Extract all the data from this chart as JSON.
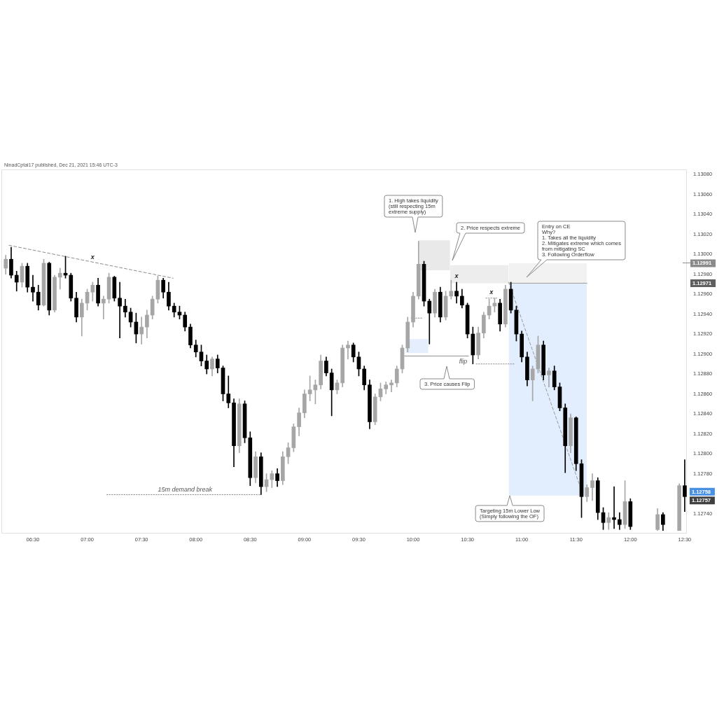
{
  "chart_data": {
    "type": "candlestick",
    "annotations": [
      "NinadCptal17 published, Dec 21, 2021 15:46 UTC-3",
      "1. High takes liquidity\n(still respecting 15m\nextreme supply)",
      "2. Price respects extreme",
      "3. Price causes Flip",
      "Entry on CE\nWhy?\n1. Takes all the liquidity\n2. Mitigates extreme which comes\nfrom mitigating SC\n3. Following Orderflow",
      {
        "text": "Targeting 15m Lower Low\n(Simply following the OF)",
        "x": 10.89,
        "y": 1.12758
      },
      {
        "text": "15m demand break",
        "x": 7.9,
        "y": 1.12759
      },
      {
        "text": "flip",
        "x": 10.5,
        "y": 1.12898
      },
      {
        "text": "x",
        "x": 7.05,
        "y": 1.12992
      },
      {
        "text": "x",
        "x": 10.4,
        "y": 1.12972
      },
      {
        "text": "x",
        "x": 10.72,
        "y": 1.12956
      },
      {
        "text": "1.12758",
        "x": 12.5,
        "y": 1.12758
      },
      {
        "text": "1.12757",
        "x": 12.5,
        "y": 1.12757
      },
      "1.12971"
    ],
    "x": [
      6.25,
      6.3,
      6.35,
      6.4,
      6.45,
      6.5,
      6.55,
      6.6,
      6.65,
      6.7,
      6.75,
      6.8,
      6.85,
      6.9,
      6.95,
      7,
      7.05,
      7.1,
      7.15,
      7.2,
      7.25,
      7.3,
      7.35,
      7.4,
      7.45,
      7.5,
      7.55,
      7.6,
      7.65,
      7.7,
      7.75,
      7.8,
      7.85,
      7.9,
      7.95,
      8,
      8.05,
      8.1,
      8.15,
      8.2,
      8.25,
      8.3,
      8.35,
      8.4,
      8.45,
      8.5,
      8.55,
      8.6,
      8.65,
      8.7,
      8.75,
      8.8,
      8.85,
      8.9,
      8.95,
      9,
      9.05,
      9.1,
      9.15,
      9.2,
      9.25,
      9.3,
      9.35,
      9.4,
      9.45,
      9.5,
      9.55,
      9.6,
      9.65,
      9.7,
      9.75,
      9.8,
      9.85,
      9.9,
      9.95,
      10,
      10.05,
      10.1,
      10.15,
      10.2,
      10.25,
      10.3,
      10.35,
      10.4,
      10.45,
      10.5,
      10.55,
      10.6,
      10.65,
      10.7,
      10.75,
      10.8,
      10.85,
      10.9,
      10.95,
      11,
      11.05,
      11.1,
      11.15,
      11.2,
      11.25,
      11.3,
      11.35,
      11.4,
      11.45,
      11.5,
      11.55,
      11.6,
      11.65,
      11.7,
      11.75,
      11.8,
      11.85,
      11.9,
      11.95,
      12,
      12.25,
      12.3,
      12.45,
      12.5
    ],
    "ohlc": [
      [
        1.12986,
        1.12999,
        1.1298,
        1.12995
      ],
      [
        1.12995,
        1.13007,
        1.12976,
        1.12979
      ],
      [
        1.12979,
        1.12983,
        1.12963,
        1.12972
      ],
      [
        1.12972,
        1.12991,
        1.12967,
        1.12988
      ],
      [
        1.12988,
        1.12991,
        1.12962,
        1.12967
      ],
      [
        1.12967,
        1.12979,
        1.12953,
        1.12962
      ],
      [
        1.12962,
        1.12969,
        1.12944,
        1.12949
      ],
      [
        1.12949,
        1.12995,
        1.12948,
        1.12991
      ],
      [
        1.12991,
        1.12992,
        1.12939,
        1.12944
      ],
      [
        1.12944,
        1.12979,
        1.12942,
        1.12977
      ],
      [
        1.12977,
        1.12986,
        1.12965,
        1.12981
      ],
      [
        1.12981,
        1.12998,
        1.12976,
        1.12979
      ],
      [
        1.12979,
        1.12981,
        1.12953,
        1.12956
      ],
      [
        1.12956,
        1.12962,
        1.12932,
        1.12937
      ],
      [
        1.12937,
        1.12955,
        1.12918,
        1.12951
      ],
      [
        1.12951,
        1.12965,
        1.12944,
        1.12962
      ],
      [
        1.12962,
        1.12972,
        1.12953,
        1.12969
      ],
      [
        1.12969,
        1.12976,
        1.12948,
        1.12951
      ],
      [
        1.12951,
        1.12958,
        1.12935,
        1.12955
      ],
      [
        1.12955,
        1.12981,
        1.12951,
        1.12977
      ],
      [
        1.12977,
        1.12978,
        1.12953,
        1.12956
      ],
      [
        1.12956,
        1.12972,
        1.12916,
        1.12948
      ],
      [
        1.12948,
        1.12955,
        1.12937,
        1.12942
      ],
      [
        1.12942,
        1.12946,
        1.12927,
        1.12932
      ],
      [
        1.12932,
        1.12941,
        1.12911,
        1.1292
      ],
      [
        1.1292,
        1.12937,
        1.1291,
        1.12927
      ],
      [
        1.12927,
        1.12944,
        1.12916,
        1.12939
      ],
      [
        1.12939,
        1.12958,
        1.12935,
        1.12955
      ],
      [
        1.12955,
        1.12978,
        1.12951,
        1.12974
      ],
      [
        1.12974,
        1.12976,
        1.12956,
        1.12962
      ],
      [
        1.12962,
        1.12972,
        1.12944,
        1.12948
      ],
      [
        1.12948,
        1.12951,
        1.12937,
        1.12942
      ],
      [
        1.12942,
        1.12948,
        1.12935,
        1.12939
      ],
      [
        1.12939,
        1.12942,
        1.12923,
        1.12927
      ],
      [
        1.12927,
        1.1293,
        1.12906,
        1.12909
      ],
      [
        1.12909,
        1.12914,
        1.12897,
        1.12902
      ],
      [
        1.12902,
        1.12909,
        1.12888,
        1.12893
      ],
      [
        1.12893,
        1.12899,
        1.1288,
        1.12885
      ],
      [
        1.12885,
        1.12897,
        1.12878,
        1.12895
      ],
      [
        1.12895,
        1.12899,
        1.12881,
        1.12886
      ],
      [
        1.12886,
        1.12888,
        1.12853,
        1.1286
      ],
      [
        1.1286,
        1.12878,
        1.12846,
        1.12851
      ],
      [
        1.12851,
        1.12855,
        1.12787,
        1.12808
      ],
      [
        1.12808,
        1.12855,
        1.12801,
        1.1285
      ],
      [
        1.1285,
        1.12853,
        1.12811,
        1.12816
      ],
      [
        1.12816,
        1.12822,
        1.12768,
        1.12776
      ],
      [
        1.12776,
        1.12802,
        1.12771,
        1.12797
      ],
      [
        1.12797,
        1.12801,
        1.12759,
        1.12767
      ],
      [
        1.12767,
        1.1278,
        1.12762,
        1.12774
      ],
      [
        1.12774,
        1.12783,
        1.12766,
        1.1278
      ],
      [
        1.1278,
        1.12785,
        1.12767,
        1.12773
      ],
      [
        1.12773,
        1.12802,
        1.12769,
        1.12797
      ],
      [
        1.12797,
        1.12811,
        1.1279,
        1.12806
      ],
      [
        1.12806,
        1.1283,
        1.12802,
        1.12827
      ],
      [
        1.12827,
        1.12846,
        1.12818,
        1.12841
      ],
      [
        1.12841,
        1.12864,
        1.12836,
        1.1286
      ],
      [
        1.1286,
        1.12878,
        1.12853,
        1.12864
      ],
      [
        1.12864,
        1.12874,
        1.1285,
        1.12869
      ],
      [
        1.12869,
        1.12899,
        1.12865,
        1.12893
      ],
      [
        1.12893,
        1.12897,
        1.12878,
        1.12881
      ],
      [
        1.12881,
        1.12885,
        1.12838,
        1.12864
      ],
      [
        1.12864,
        1.12874,
        1.1286,
        1.12871
      ],
      [
        1.12871,
        1.12909,
        1.12867,
        1.12906
      ],
      [
        1.12906,
        1.12913,
        1.12895,
        1.12909
      ],
      [
        1.12909,
        1.12911,
        1.12892,
        1.12897
      ],
      [
        1.12897,
        1.12902,
        1.12878,
        1.12885
      ],
      [
        1.12885,
        1.12888,
        1.12864,
        1.12869
      ],
      [
        1.12869,
        1.12874,
        1.12825,
        1.12832
      ],
      [
        1.12832,
        1.1286,
        1.12829,
        1.12857
      ],
      [
        1.12857,
        1.12871,
        1.12853,
        1.12865
      ],
      [
        1.12865,
        1.12872,
        1.1286,
        1.12869
      ],
      [
        1.12869,
        1.12874,
        1.12862,
        1.12871
      ],
      [
        1.12871,
        1.12888,
        1.12867,
        1.12885
      ],
      [
        1.12885,
        1.12909,
        1.12881,
        1.12906
      ],
      [
        1.12906,
        1.12937,
        1.12902,
        1.12932
      ],
      [
        1.12932,
        1.12962,
        1.12927,
        1.12958
      ],
      [
        1.12958,
        1.13013,
        1.12955,
        1.1299
      ],
      [
        1.1299,
        1.12993,
        1.12948,
        1.12953
      ],
      [
        1.12953,
        1.12955,
        1.1291,
        1.12941
      ],
      [
        1.12941,
        1.12965,
        1.12937,
        1.12962
      ],
      [
        1.12962,
        1.12967,
        1.12932,
        1.12937
      ],
      [
        1.12937,
        1.12963,
        1.12934,
        1.12958
      ],
      [
        1.12958,
        1.12974,
        1.12955,
        1.12963
      ],
      [
        1.12963,
        1.12972,
        1.12951,
        1.12958
      ],
      [
        1.12958,
        1.12965,
        1.12946,
        1.12949
      ],
      [
        1.12949,
        1.12951,
        1.12916,
        1.1292
      ],
      [
        1.1292,
        1.12927,
        1.1289,
        1.12899
      ],
      [
        1.12899,
        1.12927,
        1.12895,
        1.12921
      ],
      [
        1.12921,
        1.12942,
        1.12916,
        1.12939
      ],
      [
        1.12939,
        1.12955,
        1.12935,
        1.12948
      ],
      [
        1.12948,
        1.12956,
        1.12942,
        1.12951
      ],
      [
        1.12951,
        1.12955,
        1.12923,
        1.1293
      ],
      [
        1.1293,
        1.12969,
        1.12927,
        1.12965
      ],
      [
        1.12965,
        1.12972,
        1.12941,
        1.12944
      ],
      [
        1.12944,
        1.12948,
        1.12913,
        1.1292
      ],
      [
        1.1292,
        1.12923,
        1.12892,
        1.12897
      ],
      [
        1.12897,
        1.12902,
        1.12868,
        1.12874
      ],
      [
        1.12874,
        1.12888,
        1.12853,
        1.12885
      ],
      [
        1.12885,
        1.12918,
        1.12881,
        1.12909
      ],
      [
        1.12909,
        1.12913,
        1.12874,
        1.12879
      ],
      [
        1.12879,
        1.12886,
        1.12867,
        1.12883
      ],
      [
        1.12883,
        1.12888,
        1.12864,
        1.12867
      ],
      [
        1.12867,
        1.12871,
        1.12843,
        1.12846
      ],
      [
        1.12846,
        1.1285,
        1.12781,
        1.12808
      ],
      [
        1.12808,
        1.1284,
        1.12801,
        1.12836
      ],
      [
        1.12836,
        1.12837,
        1.12783,
        1.1279
      ],
      [
        1.1279,
        1.12794,
        1.12736,
        1.12757
      ],
      [
        1.12757,
        1.12769,
        1.12752,
        1.12766
      ],
      [
        1.12766,
        1.1278,
        1.12753,
        1.12773
      ],
      [
        1.12773,
        1.12776,
        1.12734,
        1.12741
      ],
      [
        1.12741,
        1.12746,
        1.12724,
        1.12731
      ],
      [
        1.12731,
        1.12741,
        1.12724,
        1.12736
      ],
      [
        1.12736,
        1.12767,
        1.12725,
        1.12734
      ],
      [
        1.12734,
        1.12741,
        1.12724,
        1.12729
      ],
      [
        1.12729,
        1.12773,
        1.12725,
        1.12752
      ],
      [
        1.12752,
        1.12755,
        1.12724,
        1.12727
      ],
      [
        1.12724,
        1.12745,
        1.12723,
        1.12739
      ],
      [
        1.12739,
        1.12741,
        1.12723,
        1.12729
      ],
      [
        1.12723,
        1.1277,
        1.12723,
        1.12768
      ],
      [
        1.12768,
        1.12794,
        1.12742,
        1.12757
      ]
    ],
    "colors": [
      "#a6a6a6",
      "#000000",
      "#000000",
      "#a6a6a6",
      "#000000",
      "#000000",
      "#000000",
      "#a6a6a6",
      "#000000",
      "#a6a6a6",
      "#a6a6a6",
      "#000000",
      "#000000",
      "#000000",
      "#a6a6a6",
      "#a6a6a6",
      "#a6a6a6",
      "#000000",
      "#a6a6a6",
      "#a6a6a6",
      "#000000",
      "#000000",
      "#000000",
      "#000000",
      "#000000",
      "#a6a6a6",
      "#a6a6a6",
      "#a6a6a6",
      "#a6a6a6",
      "#000000",
      "#000000",
      "#000000",
      "#000000",
      "#000000",
      "#000000",
      "#000000",
      "#000000",
      "#000000",
      "#a6a6a6",
      "#000000",
      "#000000",
      "#000000",
      "#000000",
      "#a6a6a6",
      "#000000",
      "#000000",
      "#a6a6a6",
      "#000000",
      "#a6a6a6",
      "#a6a6a6",
      "#000000",
      "#a6a6a6",
      "#a6a6a6",
      "#a6a6a6",
      "#a6a6a6",
      "#a6a6a6",
      "#a6a6a6",
      "#a6a6a6",
      "#a6a6a6",
      "#000000",
      "#000000",
      "#a6a6a6",
      "#a6a6a6",
      "#a6a6a6",
      "#000000",
      "#000000",
      "#000000",
      "#000000",
      "#a6a6a6",
      "#a6a6a6",
      "#a6a6a6",
      "#a6a6a6",
      "#a6a6a6",
      "#a6a6a6",
      "#a6a6a6",
      "#a6a6a6",
      "#a6a6a6",
      "#000000",
      "#000000",
      "#a6a6a6",
      "#000000",
      "#a6a6a6",
      "#a6a6a6",
      "#000000",
      "#000000",
      "#000000",
      "#000000",
      "#a6a6a6",
      "#a6a6a6",
      "#a6a6a6",
      "#a6a6a6",
      "#000000",
      "#a6a6a6",
      "#000000",
      "#000000",
      "#000000",
      "#000000",
      "#a6a6a6",
      "#a6a6a6",
      "#000000",
      "#a6a6a6",
      "#000000",
      "#000000",
      "#000000",
      "#a6a6a6",
      "#000000",
      "#000000",
      "#a6a6a6",
      "#a6a6a6",
      "#000000",
      "#000000",
      "#a6a6a6",
      "#000000",
      "#000000",
      "#a6a6a6",
      "#000000",
      "#a6a6a6",
      "#000000",
      "#a6a6a6",
      "#000000"
    ],
    "series": [
      {
        "type": "area",
        "x": [
          10.05,
          10.34
        ],
        "values": [
          null,
          null
        ],
        "lower": [
          1.12984,
          1.12984
        ],
        "upper": [
          1.13014,
          1.13014
        ],
        "color": "#e9e9e9"
      },
      {
        "type": "area",
        "x": [
          10.34,
          10.88
        ],
        "values": [
          null,
          null
        ],
        "lower": [
          1.12971,
          1.12971
        ],
        "upper": [
          1.12989,
          1.12989
        ],
        "color": "#ededed"
      },
      {
        "type": "area",
        "x": [
          9.93,
          10.14
        ],
        "values": [
          null,
          null
        ],
        "lower": [
          1.12901,
          1.12901
        ],
        "upper": [
          1.12915,
          1.12915
        ],
        "color": "#e4eefc"
      },
      {
        "type": "area",
        "x": [
          10.88,
          11.6
        ],
        "values": [
          null,
          null
        ],
        "lower": [
          1.12971,
          1.12971
        ],
        "upper": [
          1.12991,
          1.12991
        ],
        "color": "#f2f2f2"
      },
      {
        "type": "area",
        "x": [
          10.88,
          11.6
        ],
        "values": [
          null,
          null
        ],
        "lower": [
          1.12758,
          1.12758
        ],
        "upper": [
          1.12971,
          1.12971
        ],
        "color": "#e2edfd"
      },
      {
        "type": "line",
        "x": [
          10.88,
          11.6
        ],
        "values": [
          1.12971,
          1.12971
        ],
        "color": "#9a9a9a",
        "line_style": "solid"
      },
      {
        "type": "line",
        "x": [
          6.28,
          7.79
        ],
        "values": [
          1.13009,
          1.12976
        ],
        "color": "#8c8c8c",
        "line_style": "dashed"
      },
      {
        "type": "line",
        "x": [
          7.18,
          8.59
        ],
        "values": [
          1.12759,
          1.12759
        ],
        "color": "#8c8c8c",
        "line_style": "dotted"
      },
      {
        "type": "line",
        "x": [
          9.92,
          10.51
        ],
        "values": [
          1.12898,
          1.12898
        ],
        "color": "#8c8c8c",
        "line_style": "solid"
      },
      {
        "type": "line",
        "x": [
          10.58,
          10.93
        ],
        "values": [
          1.1289,
          1.1289
        ],
        "color": "#8c8c8c",
        "line_style": "dotted"
      },
      {
        "type": "line",
        "x": [
          9.98,
          10.08
        ],
        "values": [
          1.12936,
          1.12936
        ],
        "color": "#8c8c8c",
        "line_style": "dotted"
      },
      {
        "type": "line",
        "x": [
          10.67,
          10.78
        ],
        "values": [
          1.12956,
          1.12956
        ],
        "color": "#8c8c8c",
        "line_style": "dotted"
      },
      {
        "type": "line",
        "x": [
          10.88,
          11.55
        ],
        "values": [
          1.12972,
          1.12763
        ],
        "color": "#9a9a9a",
        "line_style": "dashed"
      }
    ],
    "ref_lines": [
      {
        "axis": "y",
        "value": 1.12991,
        "label": "1.12991",
        "color": "#8a8a8a"
      }
    ],
    "xlim": [
      6.21,
      12.52
    ],
    "xticks": [
      {
        "value": 6.5,
        "label": "06:30"
      },
      {
        "value": 7,
        "label": "07:00"
      },
      {
        "value": 7.5,
        "label": "07:30"
      },
      {
        "value": 8,
        "label": "08:00"
      },
      {
        "value": 8.5,
        "label": "08:30"
      },
      {
        "value": 9,
        "label": "09:00"
      },
      {
        "value": 9.5,
        "label": "09:30"
      },
      {
        "value": 10,
        "label": "10:00"
      },
      {
        "value": 10.5,
        "label": "10:30"
      },
      {
        "value": 11,
        "label": "11:00"
      },
      {
        "value": 11.5,
        "label": "11:30"
      },
      {
        "value": 12,
        "label": "12:00"
      },
      {
        "value": 12.5,
        "label": "12:30"
      }
    ],
    "ylim": [
      1.1272,
      1.13085
    ],
    "yticks": [
      {
        "value": 1.1274,
        "label": "1.12740"
      },
      {
        "value": 1.1278,
        "label": "1.12780"
      },
      {
        "value": 1.128,
        "label": "1.12800"
      },
      {
        "value": 1.1282,
        "label": "1.12820"
      },
      {
        "value": 1.1284,
        "label": "1.12840"
      },
      {
        "value": 1.1286,
        "label": "1.12860"
      },
      {
        "value": 1.1288,
        "label": "1.12880"
      },
      {
        "value": 1.129,
        "label": "1.12900"
      },
      {
        "value": 1.1292,
        "label": "1.12920"
      },
      {
        "value": 1.1294,
        "label": "1.12940"
      },
      {
        "value": 1.1296,
        "label": "1.12960"
      },
      {
        "value": 1.1298,
        "label": "1.12980"
      },
      {
        "value": 1.13,
        "label": "1.13000"
      },
      {
        "value": 1.1302,
        "label": "1.13020"
      },
      {
        "value": 1.1304,
        "label": "1.13040"
      },
      {
        "value": 1.1306,
        "label": "1.13060"
      },
      {
        "value": 1.1308,
        "label": "1.13080"
      }
    ],
    "grid": false,
    "legend": false
  }
}
